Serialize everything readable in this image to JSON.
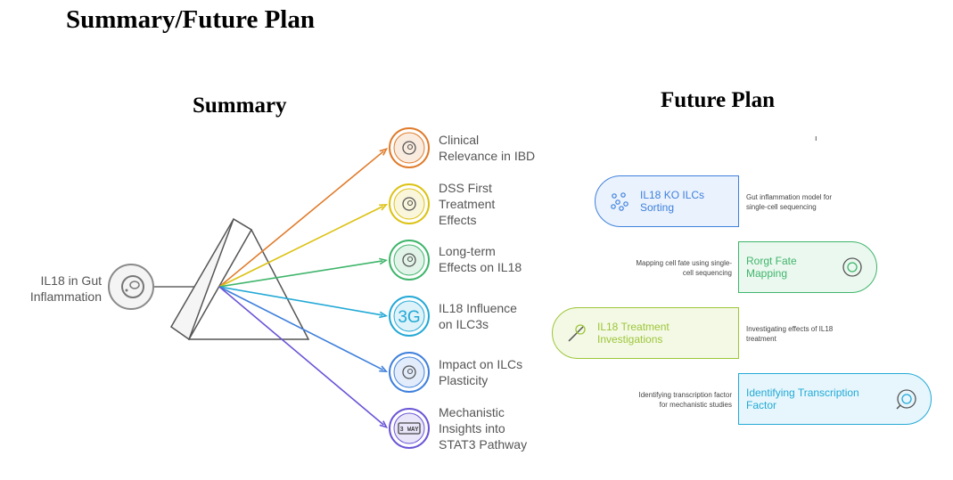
{
  "title": "Summary/Future Plan",
  "summary": {
    "heading": "Summary",
    "input_label": "IL18 in Gut Inflammation",
    "items": [
      {
        "label": "Clinical Relevance in IBD",
        "color": "#e07b2a",
        "icon": "lungs-icon"
      },
      {
        "label": "DSS First Treatment Effects",
        "color": "#dcc214",
        "icon": "cell-injection-icon"
      },
      {
        "label": "Long-term Effects on IL18",
        "color": "#3fb56b",
        "icon": "pill-clock-icon"
      },
      {
        "label": "IL18 Influence on ILC3s",
        "color": "#23a9d6",
        "icon": "3g-icon"
      },
      {
        "label": "Impact on ILCs Plasticity",
        "color": "#3f80dc",
        "icon": "cell-icon"
      },
      {
        "label": "Mechanistic Insights into STAT3 Pathway",
        "color": "#6a55d6",
        "icon": "3-way-icon"
      }
    ]
  },
  "future_plan": {
    "heading": "Future Plan",
    "stray_mark": "ı",
    "steps": [
      {
        "label": "IL18 KO ILCs Sorting",
        "description": "Gut inflammation model for single-cell sequencing",
        "color": "#3f80dc",
        "fill": "#eaf2fd",
        "icon": "cells-sorting-icon"
      },
      {
        "label": "Rorgt Fate Mapping",
        "description": "Mapping cell fate using single-cell sequencing",
        "color": "#3fb56b",
        "fill": "#ebf8ef",
        "icon": "petri-dish-icon"
      },
      {
        "label": "IL18 Treatment Investigations",
        "description": "Investigating effects of IL18 treatment",
        "color": "#9ec53a",
        "fill": "#f3f9e4",
        "icon": "syringe-icon"
      },
      {
        "label": "Identifying Transcription Factor",
        "description": "Identifying transcription factor for mechanistic studies",
        "color": "#23a9d6",
        "fill": "#e6f6fc",
        "icon": "dna-search-icon"
      }
    ]
  }
}
